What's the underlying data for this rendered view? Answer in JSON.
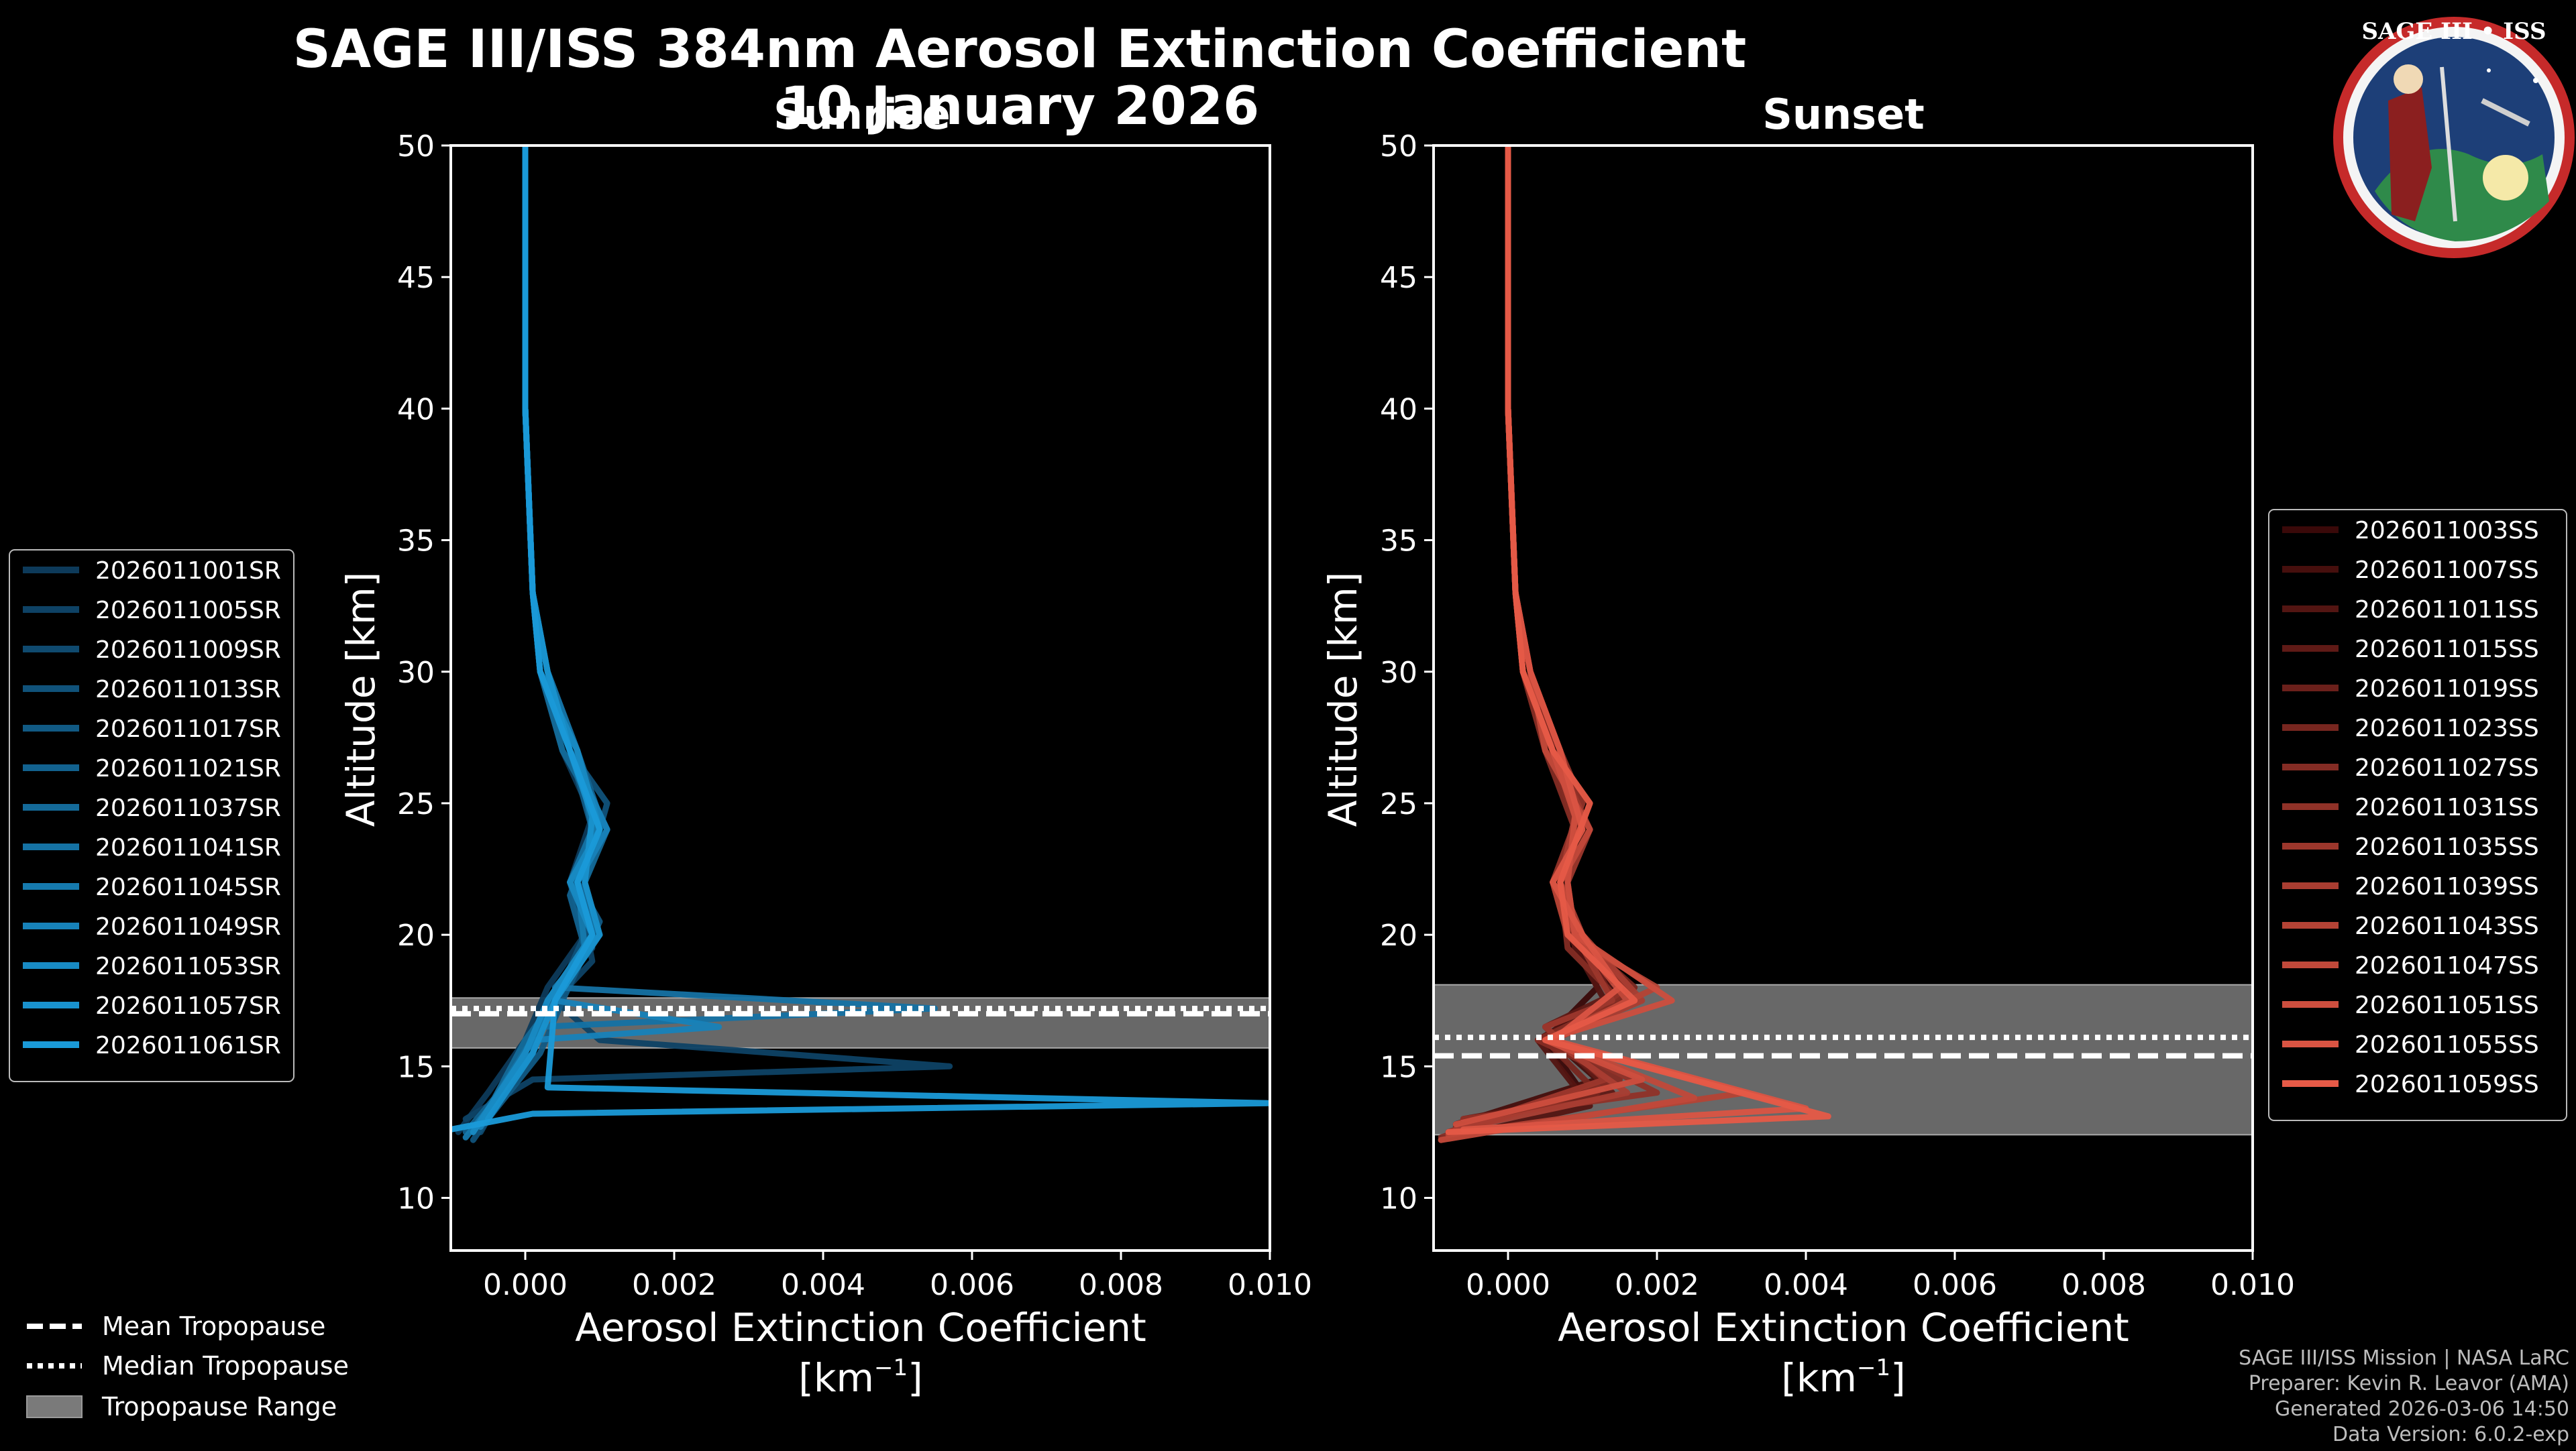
{
  "title": {
    "line1": "SAGE III/ISS 384nm Aerosol Extinction Coefficient",
    "line2": "10 January 2026"
  },
  "logo": {
    "text": "SAGE III • ISS",
    "icon": "mission-patch-icon"
  },
  "footer": [
    "SAGE III/ISS Mission | NASA LaRC",
    "Preparer: Kevin R. Leavor (AMA)",
    "Generated 2026-03-06 14:50",
    "Data Version: 6.0.2-exp"
  ],
  "bottom_legend": {
    "mean": "Mean Tropopause",
    "median": "Median Tropopause",
    "range": "Tropopause Range"
  },
  "chart_data": [
    {
      "type": "line",
      "title": "Sunrise",
      "xlabel": "Aerosol Extinction Coefficient",
      "xunit": "[km",
      "xunit_sup": "−1",
      "xunit_end": "]",
      "ylabel": "Altitude [km]",
      "xlim": [
        -0.001,
        0.01
      ],
      "ylim": [
        8,
        50
      ],
      "xticks": [
        0.0,
        0.002,
        0.004,
        0.006,
        0.008,
        0.01
      ],
      "xtick_labels": [
        "0.000",
        "0.002",
        "0.004",
        "0.006",
        "0.008",
        "0.010"
      ],
      "yticks": [
        10,
        15,
        20,
        25,
        30,
        35,
        40,
        45,
        50
      ],
      "ytick_labels": [
        "10",
        "15",
        "20",
        "25",
        "30",
        "35",
        "40",
        "45",
        "50"
      ],
      "tropopause": {
        "mean": 17.0,
        "median": 17.2,
        "range": [
          15.7,
          17.6
        ]
      },
      "color_dark": "#0d3a5a",
      "color_light": "#1a9ad8",
      "series": [
        {
          "name": "2026011001SR",
          "x": [
            0.0,
            0.0,
            0.0001,
            0.0002,
            0.0005,
            0.0009,
            0.0006,
            0.0008,
            0.0003,
            0.0,
            -0.0005,
            -0.0009
          ],
          "y": [
            50,
            40,
            33,
            30,
            27,
            24.5,
            22,
            20,
            18,
            16,
            14,
            12.5
          ]
        },
        {
          "name": "2026011005SR",
          "x": [
            0.0,
            0.0,
            0.0001,
            0.0003,
            0.0006,
            0.0011,
            0.0007,
            0.0009,
            0.0004,
            0.001,
            0.0057,
            0.0001,
            -0.0008
          ],
          "y": [
            50,
            40,
            33,
            30,
            27,
            24,
            22,
            19,
            17.5,
            16,
            15,
            14.5,
            13
          ]
        },
        {
          "name": "2026011009SR",
          "x": [
            0.0,
            0.0,
            0.0001,
            0.0002,
            0.0007,
            0.001,
            0.0006,
            0.0009,
            0.0003,
            0.0,
            -0.0006
          ],
          "y": [
            50,
            40,
            33,
            30,
            27,
            24,
            22,
            19.5,
            17.5,
            15.5,
            12.5
          ]
        },
        {
          "name": "2026011013SR",
          "x": [
            0.0,
            0.0,
            0.0001,
            0.0003,
            0.0006,
            0.0011,
            0.0008,
            0.0008,
            0.0004,
            0.0001,
            -0.0007
          ],
          "y": [
            50,
            40,
            33,
            30,
            27,
            25,
            22,
            20,
            17.5,
            15.5,
            12.2
          ]
        },
        {
          "name": "2026011017SR",
          "x": [
            0.0,
            0.0,
            0.0001,
            0.0002,
            0.0006,
            0.0009,
            0.0007,
            0.001,
            0.0005,
            0.0002,
            -0.0005
          ],
          "y": [
            50,
            40,
            33,
            30,
            27,
            24,
            22,
            20.5,
            17.5,
            15.5,
            13
          ]
        },
        {
          "name": "2026011021SR",
          "x": [
            0.0,
            0.0,
            0.0001,
            0.0003,
            0.0007,
            0.001,
            0.0006,
            0.0008,
            0.0003,
            0.0001,
            -0.0008
          ],
          "y": [
            50,
            40,
            33,
            30,
            27,
            24.5,
            21.5,
            19.5,
            17.5,
            15.5,
            12.5
          ]
        },
        {
          "name": "2026011037SR",
          "x": [
            0.0,
            0.0,
            0.0001,
            0.0002,
            0.0005,
            0.0011,
            0.0008,
            0.0009,
            0.0004,
            0.0,
            -0.0006
          ],
          "y": [
            50,
            40,
            33,
            30,
            27,
            24,
            22,
            20,
            17.5,
            16,
            12.8
          ]
        },
        {
          "name": "2026011041SR",
          "x": [
            0.0,
            0.0,
            0.0001,
            0.0003,
            0.0007,
            0.0009,
            0.0006,
            0.001,
            0.0004,
            0.0055,
            0.0002,
            -0.0007
          ],
          "y": [
            50,
            40,
            33,
            30,
            27,
            24,
            22,
            20,
            18,
            17.2,
            16.5,
            12.5
          ]
        },
        {
          "name": "2026011045SR",
          "x": [
            0.0,
            0.0,
            0.0001,
            0.0002,
            0.0006,
            0.001,
            0.0007,
            0.0008,
            0.0003,
            0.0001,
            -0.0008
          ],
          "y": [
            50,
            40,
            33,
            30,
            27,
            24.5,
            22,
            19.5,
            17.5,
            15.5,
            12.3
          ]
        },
        {
          "name": "2026011049SR",
          "x": [
            0.0,
            0.0,
            0.0001,
            0.0003,
            0.0006,
            0.0011,
            0.0007,
            0.0009,
            0.0004,
            0.0026,
            0.0001,
            -0.0006
          ],
          "y": [
            50,
            40,
            33,
            30,
            27,
            24,
            22,
            20,
            17.5,
            16.5,
            16,
            12.7
          ]
        },
        {
          "name": "2026011053SR",
          "x": [
            0.0,
            0.0,
            0.0001,
            0.0002,
            0.0007,
            0.001,
            0.0006,
            0.0009,
            0.0003,
            0.0,
            -0.0007
          ],
          "y": [
            50,
            40,
            33,
            30,
            27,
            24,
            22,
            20,
            17.5,
            15.5,
            12.5
          ]
        },
        {
          "name": "2026011057SR",
          "x": [
            0.0,
            0.0,
            0.0001,
            0.0003,
            0.0006,
            0.0009,
            0.0008,
            0.001,
            0.0004,
            0.0001,
            -0.0005
          ],
          "y": [
            50,
            40,
            33,
            30,
            27,
            24.5,
            22,
            20,
            17.5,
            15.5,
            13
          ]
        },
        {
          "name": "2026011061SR",
          "x": [
            0.0,
            0.0,
            0.0001,
            0.0002,
            0.0006,
            0.001,
            0.0007,
            0.0009,
            0.0004,
            0.0003,
            0.01,
            0.0001,
            -0.001
          ],
          "y": [
            50,
            40,
            33,
            30,
            27,
            24,
            22,
            20,
            17.5,
            14.2,
            13.6,
            13.2,
            12.6
          ]
        }
      ]
    },
    {
      "type": "line",
      "title": "Sunset",
      "xlabel": "Aerosol Extinction Coefficient",
      "xunit": "[km",
      "xunit_sup": "−1",
      "xunit_end": "]",
      "ylabel": "Altitude [km]",
      "xlim": [
        -0.001,
        0.01
      ],
      "ylim": [
        8,
        50
      ],
      "xticks": [
        0.0,
        0.002,
        0.004,
        0.006,
        0.008,
        0.01
      ],
      "xtick_labels": [
        "0.000",
        "0.002",
        "0.004",
        "0.006",
        "0.008",
        "0.010"
      ],
      "yticks": [
        10,
        15,
        20,
        25,
        30,
        35,
        40,
        45,
        50
      ],
      "ytick_labels": [
        "10",
        "15",
        "20",
        "25",
        "30",
        "35",
        "40",
        "45",
        "50"
      ],
      "tropopause": {
        "mean": 15.4,
        "median": 16.1,
        "range": [
          12.4,
          18.1
        ]
      },
      "color_dark": "#3a0909",
      "color_light": "#e65a47",
      "series": [
        {
          "name": "2026011003SS",
          "x": [
            0.0,
            0.0,
            0.0001,
            0.0002,
            0.0006,
            0.0009,
            0.0007,
            0.0009,
            0.0012,
            0.0005,
            0.001,
            -0.0008
          ],
          "y": [
            50,
            40,
            33,
            30,
            27,
            24.5,
            22,
            20,
            18,
            16,
            14,
            12.5
          ]
        },
        {
          "name": "2026011007SS",
          "x": [
            0.0,
            0.0,
            0.0001,
            0.0003,
            0.0007,
            0.001,
            0.0006,
            0.0008,
            0.0015,
            0.0006,
            0.0012,
            -0.0007
          ],
          "y": [
            50,
            40,
            33,
            30,
            27,
            24,
            22,
            20,
            17.5,
            16,
            14.5,
            12.8
          ]
        },
        {
          "name": "2026011011SS",
          "x": [
            0.0,
            0.0,
            0.0001,
            0.0002,
            0.0005,
            0.0011,
            0.0007,
            0.0009,
            0.0013,
            0.0004,
            0.0011,
            -0.0009
          ],
          "y": [
            50,
            40,
            33,
            30,
            27,
            25,
            22,
            19.5,
            17.5,
            16,
            13.5,
            12.2
          ]
        },
        {
          "name": "2026011015SS",
          "x": [
            0.0,
            0.0,
            0.0001,
            0.0003,
            0.0006,
            0.0009,
            0.0008,
            0.0008,
            0.0016,
            0.0005,
            0.0014,
            -0.0006
          ],
          "y": [
            50,
            40,
            33,
            30,
            27,
            24,
            22,
            20,
            18,
            16.5,
            14,
            13
          ]
        },
        {
          "name": "2026011019SS",
          "x": [
            0.0,
            0.0,
            0.0001,
            0.0002,
            0.0007,
            0.001,
            0.0006,
            0.001,
            0.0014,
            0.0006,
            0.0013,
            -0.0008
          ],
          "y": [
            50,
            40,
            33,
            30,
            27,
            24.5,
            22,
            20,
            17.5,
            16,
            14.5,
            12.5
          ]
        },
        {
          "name": "2026011023SS",
          "x": [
            0.0,
            0.0,
            0.0001,
            0.0003,
            0.0006,
            0.0011,
            0.0007,
            0.0009,
            0.0017,
            0.0005,
            0.0012,
            -0.0007
          ],
          "y": [
            50,
            40,
            33,
            30,
            27,
            24,
            22,
            20,
            18,
            16,
            14,
            12.7
          ]
        },
        {
          "name": "2026011027SS",
          "x": [
            0.0,
            0.0,
            0.0001,
            0.0002,
            0.0005,
            0.0009,
            0.0007,
            0.0008,
            0.0015,
            0.0004,
            0.0015,
            -0.0009
          ],
          "y": [
            50,
            40,
            33,
            30,
            27,
            24,
            22,
            19.5,
            17.5,
            16,
            14.5,
            12.3
          ]
        },
        {
          "name": "2026011031SS",
          "x": [
            0.0,
            0.0,
            0.0001,
            0.0003,
            0.0007,
            0.001,
            0.0006,
            0.0009,
            0.0016,
            0.0006,
            0.002,
            -0.0006
          ],
          "y": [
            50,
            40,
            33,
            30,
            27,
            25,
            22,
            20,
            18,
            16,
            14,
            13
          ]
        },
        {
          "name": "2026011035SS",
          "x": [
            0.0,
            0.0,
            0.0001,
            0.0002,
            0.0006,
            0.0011,
            0.0008,
            0.0009,
            0.0014,
            0.0005,
            0.0013,
            -0.0008
          ],
          "y": [
            50,
            40,
            33,
            30,
            27,
            24,
            22,
            20,
            17.5,
            16.5,
            14.5,
            12.5
          ]
        },
        {
          "name": "2026011039SS",
          "x": [
            0.0,
            0.0,
            0.0001,
            0.0003,
            0.0007,
            0.0009,
            0.0007,
            0.001,
            0.0018,
            0.0006,
            0.0016,
            -0.0007
          ],
          "y": [
            50,
            40,
            33,
            30,
            27,
            24.5,
            22,
            20,
            17.5,
            16,
            14,
            12.6
          ]
        },
        {
          "name": "2026011043SS",
          "x": [
            0.0,
            0.0,
            0.0001,
            0.0002,
            0.0006,
            0.001,
            0.0006,
            0.0008,
            0.002,
            0.0005,
            0.0032,
            -0.0008
          ],
          "y": [
            50,
            40,
            33,
            30,
            27,
            24,
            22,
            20,
            18,
            16,
            14,
            12.4
          ]
        },
        {
          "name": "2026011047SS",
          "x": [
            0.0,
            0.0,
            0.0001,
            0.0003,
            0.0005,
            0.0011,
            0.0007,
            0.0009,
            0.0016,
            0.0006,
            0.0025,
            -0.0009
          ],
          "y": [
            50,
            40,
            33,
            30,
            27,
            24,
            22,
            20,
            17.5,
            16,
            13.8,
            12.2
          ]
        },
        {
          "name": "2026011051SS",
          "x": [
            0.0,
            0.0,
            0.0001,
            0.0002,
            0.0006,
            0.0009,
            0.0008,
            0.0009,
            0.0022,
            0.0005,
            0.0018,
            -0.0007
          ],
          "y": [
            50,
            40,
            33,
            30,
            27,
            24.5,
            22,
            20,
            17.5,
            16,
            14.5,
            12.8
          ]
        },
        {
          "name": "2026011055SS",
          "x": [
            0.0,
            0.0,
            0.0001,
            0.0003,
            0.0007,
            0.001,
            0.0006,
            0.001,
            0.0015,
            0.0006,
            0.004,
            -0.0006
          ],
          "y": [
            50,
            40,
            33,
            30,
            27,
            24,
            22,
            20,
            18,
            16,
            13.4,
            12.6
          ]
        },
        {
          "name": "2026011059SS",
          "x": [
            0.0,
            0.0,
            0.0001,
            0.0002,
            0.0006,
            0.0011,
            0.0007,
            0.0008,
            0.0017,
            0.0005,
            0.0043,
            -0.0008
          ],
          "y": [
            50,
            40,
            33,
            30,
            27,
            25,
            22,
            20,
            17.5,
            16,
            13.1,
            12.5
          ]
        }
      ]
    }
  ]
}
